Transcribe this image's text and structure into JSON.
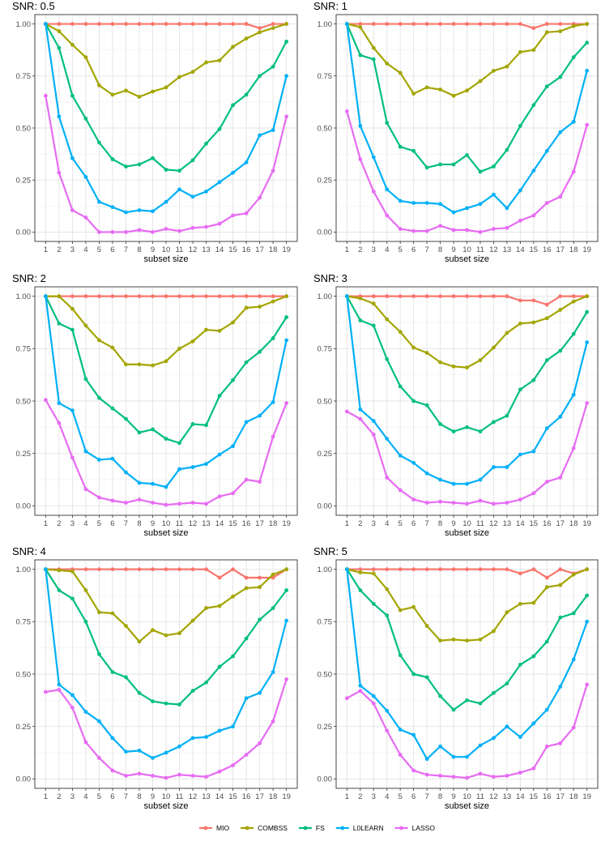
{
  "chart_data": [
    {
      "type": "line",
      "title": "SNR: 0.5",
      "xlabel": "subset size",
      "ylabel": "",
      "xlim": [
        1,
        19
      ],
      "ylim": [
        0,
        1
      ],
      "x": [
        1,
        2,
        3,
        4,
        5,
        6,
        7,
        8,
        9,
        10,
        11,
        12,
        13,
        14,
        15,
        16,
        17,
        18,
        19
      ],
      "y_ticks": [
        "0.00",
        "0.25",
        "0.50",
        "0.75",
        "1.00"
      ],
      "series": [
        {
          "name": "MIO",
          "values": [
            1,
            1,
            1,
            1,
            1,
            1,
            1,
            1,
            1,
            1,
            1,
            1,
            1,
            1,
            1,
            1,
            0.98,
            1,
            1
          ]
        },
        {
          "name": "COMBSS",
          "values": [
            1,
            0.965,
            0.9,
            0.84,
            0.705,
            0.66,
            0.68,
            0.65,
            0.675,
            0.695,
            0.745,
            0.77,
            0.815,
            0.825,
            0.89,
            0.93,
            0.96,
            0.98,
            1
          ]
        },
        {
          "name": "FS",
          "values": [
            1,
            0.885,
            0.655,
            0.545,
            0.43,
            0.35,
            0.315,
            0.325,
            0.355,
            0.3,
            0.295,
            0.345,
            0.425,
            0.495,
            0.61,
            0.66,
            0.75,
            0.795,
            0.915
          ]
        },
        {
          "name": "L0LEARN",
          "values": [
            1,
            0.555,
            0.355,
            0.265,
            0.145,
            0.12,
            0.095,
            0.105,
            0.1,
            0.145,
            0.205,
            0.17,
            0.195,
            0.24,
            0.285,
            0.335,
            0.465,
            0.49,
            0.75
          ]
        },
        {
          "name": "LASSO",
          "values": [
            0.655,
            0.285,
            0.105,
            0.07,
            0,
            0,
            0,
            0.01,
            0,
            0.015,
            0.005,
            0.02,
            0.025,
            0.04,
            0.08,
            0.09,
            0.165,
            0.295,
            0.555
          ]
        }
      ]
    },
    {
      "type": "line",
      "title": "SNR: 1",
      "xlabel": "subset size",
      "ylabel": "",
      "xlim": [
        1,
        19
      ],
      "ylim": [
        0,
        1
      ],
      "x": [
        1,
        2,
        3,
        4,
        5,
        6,
        7,
        8,
        9,
        10,
        11,
        12,
        13,
        14,
        15,
        16,
        17,
        18,
        19
      ],
      "y_ticks": [
        "0.00",
        "0.25",
        "0.50",
        "0.75",
        "1.00"
      ],
      "series": [
        {
          "name": "MIO",
          "values": [
            1,
            1,
            1,
            1,
            1,
            1,
            1,
            1,
            1,
            1,
            1,
            1,
            1,
            1,
            0.98,
            1,
            1,
            1,
            1
          ]
        },
        {
          "name": "COMBSS",
          "values": [
            1,
            0.985,
            0.885,
            0.81,
            0.765,
            0.665,
            0.695,
            0.685,
            0.655,
            0.68,
            0.725,
            0.775,
            0.795,
            0.865,
            0.875,
            0.96,
            0.965,
            0.99,
            1
          ]
        },
        {
          "name": "FS",
          "values": [
            1,
            0.85,
            0.83,
            0.525,
            0.41,
            0.39,
            0.31,
            0.325,
            0.325,
            0.37,
            0.29,
            0.315,
            0.395,
            0.51,
            0.61,
            0.7,
            0.745,
            0.84,
            0.91
          ]
        },
        {
          "name": "L0LEARN",
          "values": [
            1,
            0.51,
            0.36,
            0.205,
            0.15,
            0.14,
            0.14,
            0.135,
            0.095,
            0.115,
            0.135,
            0.18,
            0.115,
            0.2,
            0.295,
            0.39,
            0.48,
            0.53,
            0.775
          ]
        },
        {
          "name": "LASSO",
          "values": [
            0.58,
            0.35,
            0.195,
            0.08,
            0.015,
            0.005,
            0.005,
            0.03,
            0.01,
            0.01,
            0,
            0.015,
            0.02,
            0.055,
            0.08,
            0.14,
            0.17,
            0.29,
            0.515
          ]
        }
      ]
    },
    {
      "type": "line",
      "title": "SNR: 2",
      "xlabel": "subset size",
      "ylabel": "",
      "xlim": [
        1,
        19
      ],
      "ylim": [
        0,
        1
      ],
      "x": [
        1,
        2,
        3,
        4,
        5,
        6,
        7,
        8,
        9,
        10,
        11,
        12,
        13,
        14,
        15,
        16,
        17,
        18,
        19
      ],
      "y_ticks": [
        "0.00",
        "0.25",
        "0.50",
        "0.75",
        "1.00"
      ],
      "series": [
        {
          "name": "MIO",
          "values": [
            1,
            1,
            1,
            1,
            1,
            1,
            1,
            1,
            1,
            1,
            1,
            1,
            1,
            1,
            1,
            1,
            1,
            1,
            1
          ]
        },
        {
          "name": "COMBSS",
          "values": [
            1,
            1,
            0.94,
            0.86,
            0.79,
            0.755,
            0.675,
            0.675,
            0.67,
            0.69,
            0.75,
            0.785,
            0.84,
            0.835,
            0.875,
            0.945,
            0.95,
            0.975,
            1
          ]
        },
        {
          "name": "FS",
          "values": [
            1,
            0.87,
            0.84,
            0.605,
            0.515,
            0.465,
            0.415,
            0.35,
            0.365,
            0.32,
            0.3,
            0.39,
            0.385,
            0.525,
            0.6,
            0.685,
            0.735,
            0.8,
            0.9
          ]
        },
        {
          "name": "L0LEARN",
          "values": [
            1,
            0.49,
            0.455,
            0.26,
            0.22,
            0.225,
            0.16,
            0.11,
            0.105,
            0.09,
            0.175,
            0.185,
            0.2,
            0.245,
            0.285,
            0.4,
            0.43,
            0.495,
            0.79
          ]
        },
        {
          "name": "LASSO",
          "values": [
            0.505,
            0.395,
            0.23,
            0.08,
            0.04,
            0.025,
            0.015,
            0.03,
            0.015,
            0.005,
            0.01,
            0.015,
            0.01,
            0.045,
            0.06,
            0.125,
            0.115,
            0.33,
            0.49
          ]
        }
      ]
    },
    {
      "type": "line",
      "title": "SNR: 3",
      "xlabel": "subset size",
      "ylabel": "",
      "xlim": [
        1,
        19
      ],
      "ylim": [
        0,
        1
      ],
      "x": [
        1,
        2,
        3,
        4,
        5,
        6,
        7,
        8,
        9,
        10,
        11,
        12,
        13,
        14,
        15,
        16,
        17,
        18,
        19
      ],
      "y_ticks": [
        "0.00",
        "0.25",
        "0.50",
        "0.75",
        "1.00"
      ],
      "series": [
        {
          "name": "MIO",
          "values": [
            1,
            1,
            1,
            1,
            1,
            1,
            1,
            1,
            1,
            1,
            1,
            1,
            1,
            0.98,
            0.98,
            0.96,
            1,
            1,
            1
          ]
        },
        {
          "name": "COMBSS",
          "values": [
            1,
            0.99,
            0.965,
            0.89,
            0.83,
            0.755,
            0.73,
            0.685,
            0.665,
            0.66,
            0.695,
            0.755,
            0.825,
            0.87,
            0.875,
            0.895,
            0.935,
            0.975,
            1
          ]
        },
        {
          "name": "FS",
          "values": [
            1,
            0.885,
            0.86,
            0.7,
            0.57,
            0.5,
            0.48,
            0.39,
            0.355,
            0.375,
            0.355,
            0.4,
            0.43,
            0.555,
            0.6,
            0.695,
            0.74,
            0.82,
            0.925
          ]
        },
        {
          "name": "L0LEARN",
          "values": [
            1,
            0.46,
            0.405,
            0.32,
            0.24,
            0.205,
            0.155,
            0.125,
            0.105,
            0.105,
            0.125,
            0.185,
            0.185,
            0.245,
            0.26,
            0.37,
            0.425,
            0.53,
            0.78
          ]
        },
        {
          "name": "LASSO",
          "values": [
            0.45,
            0.415,
            0.34,
            0.135,
            0.075,
            0.03,
            0.015,
            0.02,
            0.015,
            0.01,
            0.025,
            0.01,
            0.015,
            0.03,
            0.06,
            0.115,
            0.135,
            0.275,
            0.49
          ]
        }
      ]
    },
    {
      "type": "line",
      "title": "SNR: 4",
      "xlabel": "subset size",
      "ylabel": "",
      "xlim": [
        1,
        19
      ],
      "ylim": [
        0,
        1
      ],
      "x": [
        1,
        2,
        3,
        4,
        5,
        6,
        7,
        8,
        9,
        10,
        11,
        12,
        13,
        14,
        15,
        16,
        17,
        18,
        19
      ],
      "y_ticks": [
        "0.00",
        "0.25",
        "0.50",
        "0.75",
        "1.00"
      ],
      "series": [
        {
          "name": "MIO",
          "values": [
            1,
            1,
            1,
            1,
            1,
            1,
            1,
            1,
            1,
            1,
            1,
            1,
            1,
            0.96,
            1,
            0.96,
            0.96,
            0.96,
            1
          ]
        },
        {
          "name": "COMBSS",
          "values": [
            1,
            0.995,
            0.99,
            0.9,
            0.795,
            0.79,
            0.73,
            0.655,
            0.71,
            0.685,
            0.695,
            0.755,
            0.815,
            0.825,
            0.87,
            0.91,
            0.915,
            0.975,
            1
          ]
        },
        {
          "name": "FS",
          "values": [
            1,
            0.9,
            0.86,
            0.75,
            0.595,
            0.51,
            0.485,
            0.41,
            0.37,
            0.36,
            0.355,
            0.42,
            0.46,
            0.535,
            0.585,
            0.67,
            0.76,
            0.815,
            0.9
          ]
        },
        {
          "name": "L0LEARN",
          "values": [
            1,
            0.45,
            0.4,
            0.32,
            0.275,
            0.195,
            0.13,
            0.135,
            0.1,
            0.125,
            0.155,
            0.195,
            0.2,
            0.23,
            0.25,
            0.385,
            0.41,
            0.51,
            0.755
          ]
        },
        {
          "name": "LASSO",
          "values": [
            0.415,
            0.425,
            0.34,
            0.175,
            0.1,
            0.04,
            0.015,
            0.025,
            0.015,
            0.005,
            0.02,
            0.015,
            0.01,
            0.035,
            0.065,
            0.115,
            0.17,
            0.275,
            0.475
          ]
        }
      ]
    },
    {
      "type": "line",
      "title": "SNR: 5",
      "xlabel": "subset size",
      "ylabel": "",
      "xlim": [
        1,
        19
      ],
      "ylim": [
        0,
        1
      ],
      "x": [
        1,
        2,
        3,
        4,
        5,
        6,
        7,
        8,
        9,
        10,
        11,
        12,
        13,
        14,
        15,
        16,
        17,
        18,
        19
      ],
      "y_ticks": [
        "0.00",
        "0.25",
        "0.50",
        "0.75",
        "1.00"
      ],
      "series": [
        {
          "name": "MIO",
          "values": [
            1,
            1,
            1,
            1,
            1,
            1,
            1,
            1,
            1,
            1,
            1,
            1,
            1,
            0.98,
            1,
            0.96,
            1,
            0.98,
            1
          ]
        },
        {
          "name": "COMBSS",
          "values": [
            1,
            0.985,
            0.98,
            0.905,
            0.805,
            0.82,
            0.73,
            0.66,
            0.665,
            0.66,
            0.665,
            0.705,
            0.795,
            0.835,
            0.84,
            0.915,
            0.925,
            0.975,
            1
          ]
        },
        {
          "name": "FS",
          "values": [
            1,
            0.9,
            0.835,
            0.78,
            0.59,
            0.5,
            0.485,
            0.395,
            0.33,
            0.375,
            0.36,
            0.41,
            0.455,
            0.545,
            0.585,
            0.655,
            0.77,
            0.79,
            0.875
          ]
        },
        {
          "name": "L0LEARN",
          "values": [
            1,
            0.445,
            0.395,
            0.325,
            0.235,
            0.21,
            0.095,
            0.155,
            0.105,
            0.105,
            0.16,
            0.195,
            0.25,
            0.2,
            0.265,
            0.33,
            0.44,
            0.57,
            0.75
          ]
        },
        {
          "name": "LASSO",
          "values": [
            0.385,
            0.42,
            0.36,
            0.23,
            0.115,
            0.04,
            0.02,
            0.015,
            0.01,
            0.005,
            0.025,
            0.01,
            0.015,
            0.03,
            0.05,
            0.155,
            0.17,
            0.245,
            0.45
          ]
        }
      ]
    }
  ],
  "legend": {
    "placement": "bottom",
    "items": [
      {
        "label": "MIO",
        "color": "#F8766D"
      },
      {
        "label": "COMBSS",
        "color": "#A3A500"
      },
      {
        "label": "FS",
        "color": "#00BF7D"
      },
      {
        "label": "L0LEARN",
        "color": "#00B0F6"
      },
      {
        "label": "LASSO",
        "color": "#E76BF3"
      }
    ]
  }
}
